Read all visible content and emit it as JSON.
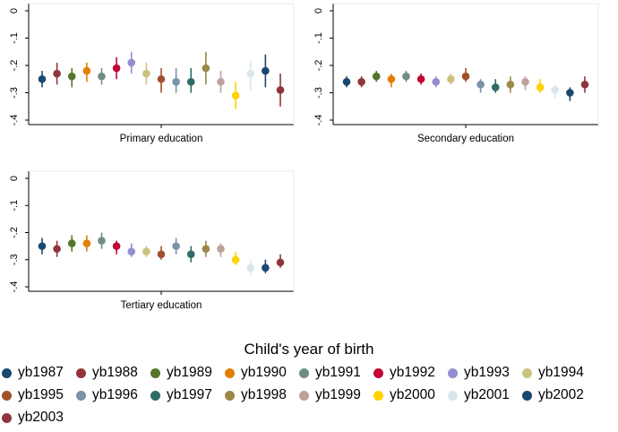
{
  "chart_data": {
    "type": "scatter",
    "legend_title": "Child's year of birth",
    "legend_position": "bottom",
    "series": [
      {
        "name": "yb1987",
        "color": "#1a476f"
      },
      {
        "name": "yb1988",
        "color": "#90353b"
      },
      {
        "name": "yb1989",
        "color": "#55752f"
      },
      {
        "name": "yb1990",
        "color": "#e37e00"
      },
      {
        "name": "yb1991",
        "color": "#6e8e84"
      },
      {
        "name": "yb1992",
        "color": "#c10534"
      },
      {
        "name": "yb1993",
        "color": "#938dd2"
      },
      {
        "name": "yb1994",
        "color": "#cac27e"
      },
      {
        "name": "yb1995",
        "color": "#a0522d"
      },
      {
        "name": "yb1996",
        "color": "#7b92a8"
      },
      {
        "name": "yb1997",
        "color": "#2d6d66"
      },
      {
        "name": "yb1998",
        "color": "#9c8847"
      },
      {
        "name": "yb1999",
        "color": "#bfa19c"
      },
      {
        "name": "yb2000",
        "color": "#ffd200"
      },
      {
        "name": "yb2001",
        "color": "#d9e6eb"
      },
      {
        "name": "yb2002",
        "color": "#1a476f"
      },
      {
        "name": "yb2003",
        "color": "#90353b"
      }
    ],
    "panels": [
      {
        "title": "Primary education",
        "y_ticks": [
          "0",
          "-.1",
          "-.2",
          "-.3",
          "-.4"
        ],
        "ylim": [
          -0.4,
          0
        ],
        "grid": false,
        "points": [
          {
            "y": -0.25,
            "lo": -0.28,
            "hi": -0.22
          },
          {
            "y": -0.23,
            "lo": -0.27,
            "hi": -0.19
          },
          {
            "y": -0.24,
            "lo": -0.28,
            "hi": -0.21
          },
          {
            "y": -0.22,
            "lo": -0.26,
            "hi": -0.19
          },
          {
            "y": -0.24,
            "lo": -0.27,
            "hi": -0.21
          },
          {
            "y": -0.21,
            "lo": -0.25,
            "hi": -0.17
          },
          {
            "y": -0.19,
            "lo": -0.23,
            "hi": -0.15
          },
          {
            "y": -0.23,
            "lo": -0.27,
            "hi": -0.19
          },
          {
            "y": -0.25,
            "lo": -0.3,
            "hi": -0.21
          },
          {
            "y": -0.26,
            "lo": -0.3,
            "hi": -0.21
          },
          {
            "y": -0.26,
            "lo": -0.3,
            "hi": -0.21
          },
          {
            "y": -0.21,
            "lo": -0.27,
            "hi": -0.15
          },
          {
            "y": -0.26,
            "lo": -0.3,
            "hi": -0.22
          },
          {
            "y": -0.31,
            "lo": -0.36,
            "hi": -0.26
          },
          {
            "y": -0.23,
            "lo": -0.29,
            "hi": -0.18
          },
          {
            "y": -0.22,
            "lo": -0.28,
            "hi": -0.16
          },
          {
            "y": -0.29,
            "lo": -0.35,
            "hi": -0.23
          }
        ]
      },
      {
        "title": "Secondary education",
        "y_ticks": [
          "0",
          "-.1",
          "-.2",
          "-.3",
          "-.4"
        ],
        "ylim": [
          -0.4,
          0
        ],
        "grid": false,
        "points": [
          {
            "y": -0.26,
            "lo": -0.28,
            "hi": -0.24
          },
          {
            "y": -0.26,
            "lo": -0.28,
            "hi": -0.24
          },
          {
            "y": -0.24,
            "lo": -0.26,
            "hi": -0.22
          },
          {
            "y": -0.25,
            "lo": -0.28,
            "hi": -0.23
          },
          {
            "y": -0.24,
            "lo": -0.26,
            "hi": -0.22
          },
          {
            "y": -0.25,
            "lo": -0.27,
            "hi": -0.23
          },
          {
            "y": -0.26,
            "lo": -0.28,
            "hi": -0.24
          },
          {
            "y": -0.25,
            "lo": -0.27,
            "hi": -0.23
          },
          {
            "y": -0.24,
            "lo": -0.26,
            "hi": -0.21
          },
          {
            "y": -0.27,
            "lo": -0.3,
            "hi": -0.25
          },
          {
            "y": -0.28,
            "lo": -0.3,
            "hi": -0.25
          },
          {
            "y": -0.27,
            "lo": -0.3,
            "hi": -0.24
          },
          {
            "y": -0.26,
            "lo": -0.29,
            "hi": -0.24
          },
          {
            "y": -0.28,
            "lo": -0.3,
            "hi": -0.25
          },
          {
            "y": -0.29,
            "lo": -0.32,
            "hi": -0.27
          },
          {
            "y": -0.3,
            "lo": -0.33,
            "hi": -0.28
          },
          {
            "y": -0.27,
            "lo": -0.3,
            "hi": -0.24
          }
        ]
      },
      {
        "title": "Tertiary education",
        "y_ticks": [
          "0",
          "-.1",
          "-.2",
          "-.3",
          "-.4"
        ],
        "ylim": [
          -0.4,
          0
        ],
        "grid": false,
        "points": [
          {
            "y": -0.25,
            "lo": -0.28,
            "hi": -0.22
          },
          {
            "y": -0.26,
            "lo": -0.29,
            "hi": -0.23
          },
          {
            "y": -0.24,
            "lo": -0.27,
            "hi": -0.21
          },
          {
            "y": -0.24,
            "lo": -0.27,
            "hi": -0.21
          },
          {
            "y": -0.23,
            "lo": -0.26,
            "hi": -0.2
          },
          {
            "y": -0.25,
            "lo": -0.28,
            "hi": -0.23
          },
          {
            "y": -0.27,
            "lo": -0.29,
            "hi": -0.24
          },
          {
            "y": -0.27,
            "lo": -0.29,
            "hi": -0.25
          },
          {
            "y": -0.28,
            "lo": -0.3,
            "hi": -0.25
          },
          {
            "y": -0.25,
            "lo": -0.28,
            "hi": -0.22
          },
          {
            "y": -0.28,
            "lo": -0.31,
            "hi": -0.25
          },
          {
            "y": -0.26,
            "lo": -0.29,
            "hi": -0.23
          },
          {
            "y": -0.26,
            "lo": -0.29,
            "hi": -0.24
          },
          {
            "y": -0.3,
            "lo": -0.32,
            "hi": -0.27
          },
          {
            "y": -0.33,
            "lo": -0.36,
            "hi": -0.3
          },
          {
            "y": -0.33,
            "lo": -0.35,
            "hi": -0.3
          },
          {
            "y": -0.31,
            "lo": -0.33,
            "hi": -0.28
          }
        ]
      }
    ]
  }
}
